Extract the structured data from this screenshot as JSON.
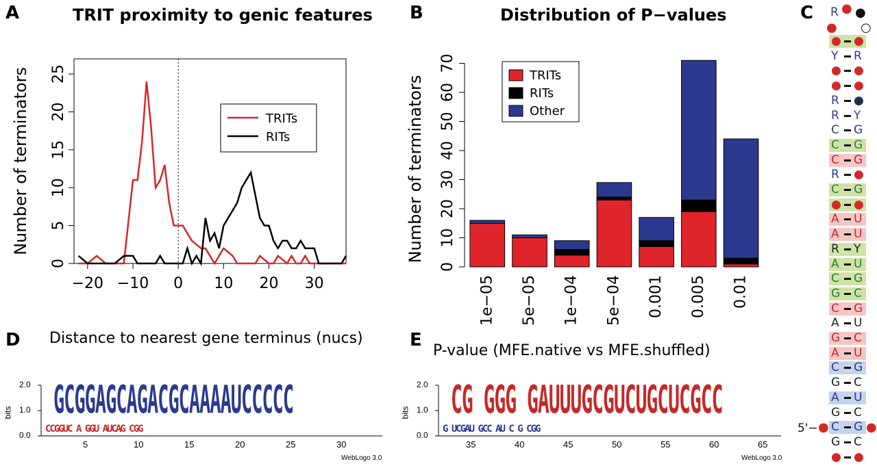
{
  "panels": {
    "A": "A",
    "B": "B",
    "C": "C",
    "D": "D",
    "E": "E"
  },
  "chart_data": [
    {
      "type": "line",
      "title": "TRIT proximity to genic features",
      "xlabel": "Distance to nearest gene terminus (nucs)",
      "ylabel": "Number of terminators",
      "xlim": [
        -23,
        37
      ],
      "ylim": [
        0,
        27
      ],
      "xticks": [
        -20,
        -10,
        0,
        10,
        20,
        30
      ],
      "yticks": [
        0,
        5,
        10,
        15,
        20,
        25
      ],
      "legend_position": "top-right",
      "reference_line_x": 0,
      "series": [
        {
          "name": "TRITs",
          "color": "#d62728",
          "x": [
            -22,
            -20,
            -18,
            -16,
            -14,
            -12,
            -10,
            -9,
            -8,
            -7,
            -6,
            -5,
            -4,
            -3,
            -2,
            -1,
            0,
            1,
            2,
            3,
            4,
            5,
            6,
            7,
            8,
            9,
            10,
            11,
            12,
            13,
            14,
            15,
            16,
            17,
            18,
            19,
            20,
            21,
            22,
            23,
            24,
            25,
            26,
            27,
            28,
            29,
            30,
            31,
            32,
            33,
            34,
            35,
            36,
            37
          ],
          "y": [
            0,
            0,
            1,
            0,
            0,
            0,
            11,
            11,
            16,
            24,
            18,
            10,
            11,
            13,
            8,
            5,
            5,
            5,
            4,
            3,
            2.5,
            2,
            2,
            1,
            0,
            1,
            2,
            1.5,
            1,
            0,
            0,
            0,
            0,
            0,
            1,
            0.5,
            0,
            0,
            1,
            0.5,
            0,
            1,
            0,
            0,
            1,
            0,
            0,
            0,
            0,
            0,
            0,
            0,
            0,
            0
          ]
        },
        {
          "name": "RITs",
          "color": "#000000",
          "x": [
            -22,
            -20,
            -18,
            -16,
            -14,
            -12,
            -10,
            -9,
            -8,
            -7,
            -6,
            -5,
            -4,
            -3,
            -2,
            -1,
            0,
            1,
            2,
            3,
            4,
            5,
            6,
            7,
            8,
            9,
            10,
            11,
            12,
            13,
            14,
            15,
            16,
            17,
            18,
            19,
            20,
            21,
            22,
            23,
            24,
            25,
            26,
            27,
            28,
            29,
            30,
            31,
            32,
            33,
            34,
            35,
            36,
            37
          ],
          "y": [
            1,
            0,
            0,
            0,
            0,
            1,
            1,
            0,
            0,
            0,
            0,
            0,
            1,
            0,
            0,
            0,
            0,
            0,
            2,
            0,
            1,
            0,
            6,
            3,
            4,
            2,
            5,
            6,
            7,
            8,
            10,
            11,
            12,
            9,
            6,
            5,
            5,
            3,
            2,
            3,
            3,
            2,
            2,
            3,
            2,
            2,
            2,
            0,
            0,
            0,
            0,
            0,
            0,
            1
          ]
        }
      ]
    },
    {
      "type": "bar",
      "stacked": true,
      "title": "Distribution of P−values",
      "xlabel": "P-value (MFE.native vs MFE.shuffled)",
      "ylabel": "Number of terminators",
      "ylim": [
        0,
        72
      ],
      "yticks": [
        0,
        10,
        20,
        30,
        40,
        50,
        60,
        70
      ],
      "legend_position": "top-left",
      "categories": [
        "1e−05",
        "5e−05",
        "1e−04",
        "5e−04",
        "0.001",
        "0.005",
        "0.01"
      ],
      "series": [
        {
          "name": "TRITs",
          "color": "#e0242b",
          "values": [
            15,
            10,
            4,
            23,
            7,
            19,
            1
          ]
        },
        {
          "name": "RITs",
          "color": "#000000",
          "values": [
            0,
            0,
            2,
            1,
            2,
            4,
            2
          ]
        },
        {
          "name": "Other",
          "color": "#2b3a8f",
          "values": [
            1,
            1,
            3,
            5,
            8,
            48,
            41
          ]
        }
      ]
    }
  ],
  "logoD": {
    "ylabel": "bits",
    "yticks": [
      "0.0",
      "1.0",
      "2.0"
    ],
    "xticks": [
      "5",
      "10",
      "15",
      "20",
      "25",
      "30"
    ],
    "big": "GCGGAGCAGACGCAAAAUCCCCC",
    "small": "CCGGUC A  GGU AUCAG  CGG",
    "credit": "WebLogo 3.0"
  },
  "logoE": {
    "ylabel": "bits",
    "yticks": [
      "0.0",
      "1.0",
      "2.0"
    ],
    "xticks": [
      "35",
      "40",
      "45",
      "50",
      "55",
      "60",
      "65"
    ],
    "big": "CG   GGG GAUUUGCGUCUGCUCGCC",
    "small": "G  UCGAU GCC AU  C  G  CGG",
    "credit": "WebLogo 3.0"
  },
  "structure": {
    "five_prime": "5'−",
    "top": [
      {
        "t": "R",
        "c": "#2b3a8f"
      },
      {
        "t": "●",
        "c": "#d62728"
      },
      {
        "t": "●",
        "c": "#111111"
      }
    ],
    "rows": [
      {
        "l": "●",
        "r": "●",
        "lc": "#d62728",
        "rc": "#d62728",
        "bg": "#cfe3a6"
      },
      {
        "l": "Y",
        "r": "R",
        "lc": "#2b3a8f",
        "rc": "#2b3a8f",
        "bg": ""
      },
      {
        "l": "●",
        "r": "●",
        "lc": "#d62728",
        "rc": "#d62728",
        "bg": ""
      },
      {
        "l": "●",
        "r": "●",
        "lc": "#d62728",
        "rc": "#d62728",
        "bg": ""
      },
      {
        "l": "R",
        "r": "●",
        "lc": "#2b3a8f",
        "rc": "#1f2f4a",
        "bg": ""
      },
      {
        "l": "R",
        "r": "Y",
        "lc": "#2b3a8f",
        "rc": "#2b3a8f",
        "bg": ""
      },
      {
        "l": "C",
        "r": "G",
        "lc": "#2b3a8f",
        "rc": "#2b3a8f",
        "bg": ""
      },
      {
        "l": "C",
        "r": "G",
        "lc": "#2e7d32",
        "rc": "#2e7d32",
        "bg": "#cfe3a6"
      },
      {
        "l": "C",
        "r": "G",
        "lc": "#c62828",
        "rc": "#c62828",
        "bg": "#f6c6c6"
      },
      {
        "l": "R",
        "r": "●",
        "lc": "#2b3a8f",
        "rc": "#d62728",
        "bg": ""
      },
      {
        "l": "C",
        "r": "G",
        "lc": "#2e7d32",
        "rc": "#2e7d32",
        "bg": "#cfe3a6"
      },
      {
        "l": "●",
        "r": "●",
        "lc": "#d62728",
        "rc": "#d62728",
        "bg": "#cfe3a6"
      },
      {
        "l": "A",
        "r": "U",
        "lc": "#c62828",
        "rc": "#c62828",
        "bg": "#f6c6c6"
      },
      {
        "l": "A",
        "r": "U",
        "lc": "#c62828",
        "rc": "#c62828",
        "bg": "#f6c6c6"
      },
      {
        "l": "R",
        "r": "Y",
        "lc": "#222222",
        "rc": "#222222",
        "bg": "#cfe3a6"
      },
      {
        "l": "A",
        "r": "U",
        "lc": "#2e7d32",
        "rc": "#2e7d32",
        "bg": "#cfe3a6"
      },
      {
        "l": "C",
        "r": "G",
        "lc": "#2e7d32",
        "rc": "#2e7d32",
        "bg": "#cfe3a6"
      },
      {
        "l": "G",
        "r": "C",
        "lc": "#2e7d32",
        "rc": "#2e7d32",
        "bg": "#cfe3a6"
      },
      {
        "l": "C",
        "r": "G",
        "lc": "#c62828",
        "rc": "#c62828",
        "bg": "#f6c6c6"
      },
      {
        "l": "A",
        "r": "U",
        "lc": "#222222",
        "rc": "#222222",
        "bg": ""
      },
      {
        "l": "G",
        "r": "C",
        "lc": "#c62828",
        "rc": "#c62828",
        "bg": "#f6c6c6"
      },
      {
        "l": "A",
        "r": "U",
        "lc": "#c62828",
        "rc": "#c62828",
        "bg": "#f6c6c6"
      },
      {
        "l": "C",
        "r": "G",
        "lc": "#2b3a8f",
        "rc": "#2b3a8f",
        "bg": "#c5d3ee"
      },
      {
        "l": "G",
        "r": "C",
        "lc": "#222222",
        "rc": "#222222",
        "bg": ""
      },
      {
        "l": "A",
        "r": "U",
        "lc": "#2b3a8f",
        "rc": "#2b3a8f",
        "bg": "#c5d3ee"
      },
      {
        "l": "G",
        "r": "C",
        "lc": "#222222",
        "rc": "#222222",
        "bg": ""
      },
      {
        "l": "C",
        "r": "G",
        "lc": "#2b3a8f",
        "rc": "#2b3a8f",
        "bg": "#c5d3ee"
      },
      {
        "l": "G",
        "r": "C",
        "lc": "#222222",
        "rc": "#222222",
        "bg": ""
      },
      {
        "l": "●",
        "r": "●",
        "lc": "#d62728",
        "rc": "#d62728",
        "bg": ""
      }
    ]
  }
}
